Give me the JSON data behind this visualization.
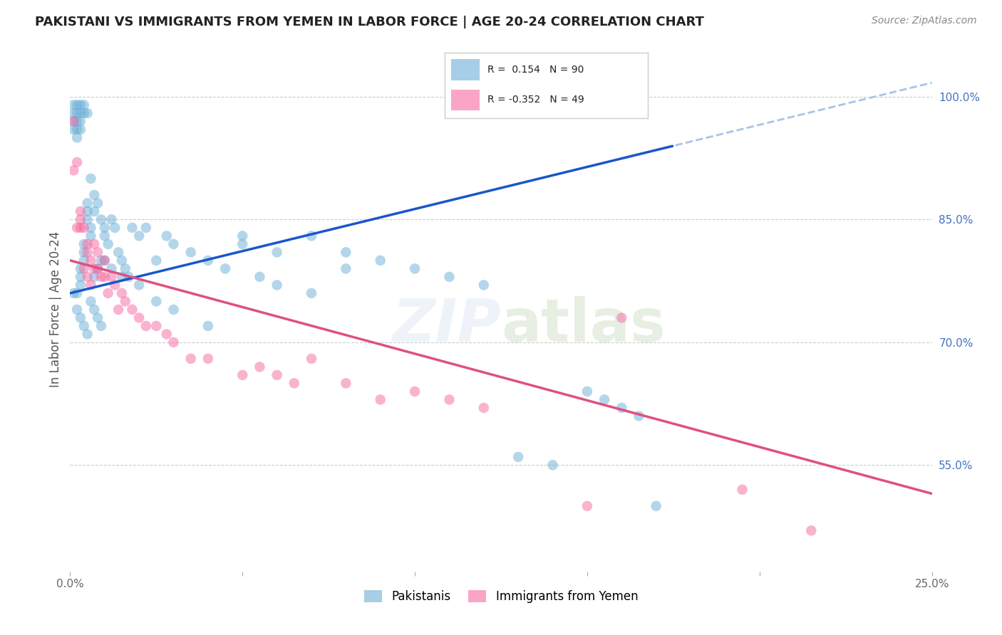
{
  "title": "PAKISTANI VS IMMIGRANTS FROM YEMEN IN LABOR FORCE | AGE 20-24 CORRELATION CHART",
  "source": "Source: ZipAtlas.com",
  "ylabel": "In Labor Force | Age 20-24",
  "x_min": 0.0,
  "x_max": 0.25,
  "y_min": 0.42,
  "y_max": 1.06,
  "x_ticks": [
    0.0,
    0.05,
    0.1,
    0.15,
    0.2,
    0.25
  ],
  "x_tick_labels": [
    "0.0%",
    "",
    "",
    "",
    "",
    "25.0%"
  ],
  "y_ticks": [
    0.55,
    0.7,
    0.85,
    1.0
  ],
  "y_tick_labels": [
    "55.0%",
    "70.0%",
    "85.0%",
    "100.0%"
  ],
  "pakistanis_color": "#6baed6",
  "yemen_color": "#f768a1",
  "pakistanis_R": 0.154,
  "pakistanis_N": 90,
  "yemen_R": -0.352,
  "yemen_N": 49,
  "legend_label_pak": "Pakistanis",
  "legend_label_yem": "Immigrants from Yemen",
  "watermark": "ZIPatlas",
  "background_color": "#ffffff",
  "grid_color": "#cccccc",
  "pakistanis_x": [
    0.001,
    0.001,
    0.001,
    0.001,
    0.002,
    0.002,
    0.002,
    0.002,
    0.002,
    0.002,
    0.003,
    0.003,
    0.003,
    0.003,
    0.003,
    0.003,
    0.003,
    0.004,
    0.004,
    0.004,
    0.004,
    0.004,
    0.005,
    0.005,
    0.005,
    0.005,
    0.006,
    0.006,
    0.006,
    0.007,
    0.007,
    0.007,
    0.008,
    0.008,
    0.009,
    0.009,
    0.01,
    0.01,
    0.011,
    0.012,
    0.013,
    0.014,
    0.015,
    0.016,
    0.017,
    0.018,
    0.02,
    0.022,
    0.025,
    0.028,
    0.03,
    0.035,
    0.04,
    0.045,
    0.05,
    0.055,
    0.06,
    0.07,
    0.08,
    0.09,
    0.1,
    0.11,
    0.12,
    0.13,
    0.14,
    0.15,
    0.155,
    0.16,
    0.165,
    0.17,
    0.001,
    0.002,
    0.003,
    0.004,
    0.005,
    0.006,
    0.007,
    0.008,
    0.009,
    0.01,
    0.012,
    0.015,
    0.02,
    0.025,
    0.03,
    0.04,
    0.05,
    0.06,
    0.07,
    0.08
  ],
  "pakistanis_y": [
    0.99,
    0.98,
    0.97,
    0.96,
    0.99,
    0.98,
    0.97,
    0.96,
    0.95,
    0.76,
    0.99,
    0.98,
    0.97,
    0.96,
    0.79,
    0.78,
    0.77,
    0.99,
    0.98,
    0.82,
    0.81,
    0.8,
    0.98,
    0.87,
    0.86,
    0.85,
    0.9,
    0.84,
    0.83,
    0.88,
    0.86,
    0.78,
    0.87,
    0.79,
    0.85,
    0.8,
    0.84,
    0.83,
    0.82,
    0.85,
    0.84,
    0.81,
    0.8,
    0.79,
    0.78,
    0.84,
    0.83,
    0.84,
    0.8,
    0.83,
    0.82,
    0.81,
    0.8,
    0.79,
    0.83,
    0.78,
    0.77,
    0.76,
    0.81,
    0.8,
    0.79,
    0.78,
    0.77,
    0.56,
    0.55,
    0.64,
    0.63,
    0.62,
    0.61,
    0.5,
    0.76,
    0.74,
    0.73,
    0.72,
    0.71,
    0.75,
    0.74,
    0.73,
    0.72,
    0.8,
    0.79,
    0.78,
    0.77,
    0.75,
    0.74,
    0.72,
    0.82,
    0.81,
    0.83,
    0.79
  ],
  "yemen_x": [
    0.001,
    0.001,
    0.002,
    0.002,
    0.003,
    0.003,
    0.003,
    0.004,
    0.004,
    0.005,
    0.005,
    0.005,
    0.006,
    0.006,
    0.007,
    0.007,
    0.008,
    0.008,
    0.009,
    0.01,
    0.01,
    0.011,
    0.012,
    0.013,
    0.014,
    0.015,
    0.016,
    0.018,
    0.02,
    0.022,
    0.025,
    0.028,
    0.03,
    0.035,
    0.04,
    0.05,
    0.055,
    0.06,
    0.065,
    0.07,
    0.08,
    0.09,
    0.1,
    0.11,
    0.12,
    0.15,
    0.16,
    0.195,
    0.215
  ],
  "yemen_y": [
    0.97,
    0.91,
    0.92,
    0.84,
    0.86,
    0.85,
    0.84,
    0.84,
    0.79,
    0.82,
    0.81,
    0.78,
    0.8,
    0.77,
    0.82,
    0.79,
    0.81,
    0.79,
    0.78,
    0.8,
    0.78,
    0.76,
    0.78,
    0.77,
    0.74,
    0.76,
    0.75,
    0.74,
    0.73,
    0.72,
    0.72,
    0.71,
    0.7,
    0.68,
    0.68,
    0.66,
    0.67,
    0.66,
    0.65,
    0.68,
    0.65,
    0.63,
    0.64,
    0.63,
    0.62,
    0.5,
    0.73,
    0.52,
    0.47
  ],
  "title_color": "#222222",
  "axis_label_color": "#555555",
  "tick_color_y": "#4472c4",
  "tick_color_x": "#666666",
  "regression_pak_color": "#1a56cc",
  "regression_yem_color": "#e05080",
  "regression_pak_dashed_color": "#a8c4e8"
}
